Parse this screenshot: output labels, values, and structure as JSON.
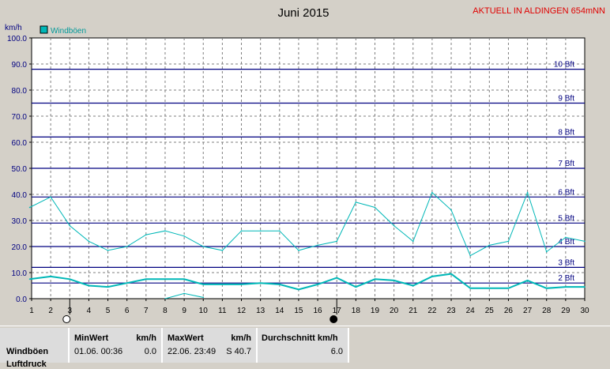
{
  "header": {
    "title": "Juni 2015",
    "station": "AKTUELL IN ALDINGEN 654mNN"
  },
  "colors": {
    "gust": "#00b7b7",
    "avg": "#00b7b7",
    "beaufort": "#000080",
    "grid": "#7f7f7f",
    "axis_text": "#000080",
    "station_text": "#e00000"
  },
  "chart_data": {
    "type": "line",
    "title": "Juni 2015",
    "ylabel": "km/h",
    "xlabel": "",
    "x": [
      1,
      2,
      3,
      4,
      5,
      6,
      7,
      8,
      9,
      10,
      11,
      12,
      13,
      14,
      15,
      16,
      17,
      18,
      19,
      20,
      21,
      22,
      23,
      24,
      25,
      26,
      27,
      28,
      29,
      30
    ],
    "xlim": [
      1,
      30
    ],
    "ylim": [
      0,
      100
    ],
    "yticks": [
      "0.0",
      "10.0",
      "20.0",
      "30.0",
      "40.0",
      "50.0",
      "60.0",
      "70.0",
      "80.0",
      "90.0",
      "100.0"
    ],
    "grid": true,
    "legend": {
      "label": "Windböen",
      "placement": "top-left"
    },
    "series": [
      {
        "name": "Windböen",
        "x": [
          0.9,
          2,
          3,
          4,
          5,
          6,
          7,
          8,
          9,
          10,
          11,
          12,
          13,
          14,
          15,
          16,
          17,
          18,
          19,
          20,
          21,
          22,
          23,
          24,
          25,
          26,
          27,
          28,
          29,
          30
        ],
        "values": [
          35,
          39,
          28,
          22,
          18.5,
          20,
          24.5,
          26,
          24,
          20,
          18.5,
          26,
          26,
          26,
          18.5,
          20.5,
          22,
          37,
          35,
          28,
          22,
          40.7,
          34,
          16.5,
          20.5,
          22,
          40.7,
          18,
          23.5,
          22
        ]
      },
      {
        "name": "",
        "x": [
          0.9,
          2,
          3,
          4,
          5,
          6,
          7,
          8,
          9,
          10,
          11,
          12,
          13,
          14,
          15,
          16,
          17,
          18,
          19,
          20,
          21,
          22,
          23,
          24,
          25,
          26,
          27,
          28,
          29,
          30
        ],
        "values": [
          7.5,
          8.5,
          7.5,
          5,
          4.5,
          6,
          7.5,
          7.5,
          7.5,
          5.5,
          5.5,
          5.5,
          6,
          5.5,
          3.5,
          5.5,
          8,
          4.5,
          7.5,
          7,
          5,
          8.5,
          9.5,
          4,
          4,
          4,
          7,
          4,
          4.5,
          4.5
        ]
      },
      {
        "name": "",
        "x": [
          8,
          9,
          10
        ],
        "values": [
          0,
          2,
          0.5
        ]
      }
    ],
    "beaufort_lines": [
      {
        "label": "2 Bft",
        "value": 6
      },
      {
        "label": "3 Bft",
        "value": 12
      },
      {
        "label": "4 Bft",
        "value": 20
      },
      {
        "label": "5 Bft",
        "value": 29
      },
      {
        "label": "6 Bft",
        "value": 39
      },
      {
        "label": "7 Bft",
        "value": 50
      },
      {
        "label": "8 Bft",
        "value": 62
      },
      {
        "label": "9 Bft",
        "value": 75
      },
      {
        "label": "10 Bft",
        "value": 88
      }
    ],
    "moon_markers": [
      {
        "day": 3,
        "phase": "full-moon-icon"
      },
      {
        "day": 17,
        "phase": "new-moon-icon"
      }
    ]
  },
  "stats": {
    "row_label": "Windböen",
    "row_label_2": "Luftdruck",
    "min_header": "MinWert",
    "min_unit": "km/h",
    "min_when": "01.06.  00:36",
    "min_value": "0.0",
    "max_header": "MaxWert",
    "max_unit": "km/h",
    "max_when": "22.06.  23:49",
    "max_value": "S 40.7",
    "avg_header": "Durchschnitt km/h",
    "avg_value": "6.0"
  }
}
